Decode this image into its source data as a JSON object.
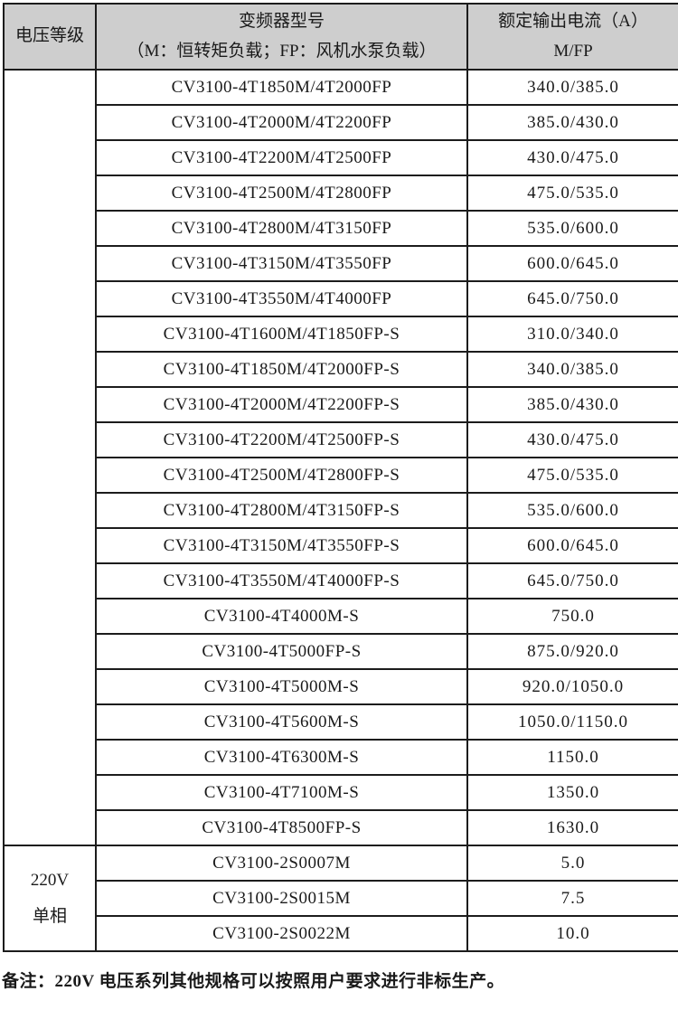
{
  "colors": {
    "header_background": "#cecece",
    "border": "#1c1c1c",
    "text": "#1a1a1a",
    "page_background": "#ffffff"
  },
  "table": {
    "header": {
      "voltage": "电压等级",
      "model_line1": "变频器型号",
      "model_line2": "（M：恒转矩负载；FP：风机水泵负载）",
      "current_line1": "额定输出电流（A）",
      "current_line2": "M/FP"
    },
    "sections": [
      {
        "voltage_lines": [],
        "rows": [
          {
            "model": "CV3100-4T1850M/4T2000FP",
            "current": "340.0/385.0"
          },
          {
            "model": "CV3100-4T2000M/4T2200FP",
            "current": "385.0/430.0"
          },
          {
            "model": "CV3100-4T2200M/4T2500FP",
            "current": "430.0/475.0"
          },
          {
            "model": "CV3100-4T2500M/4T2800FP",
            "current": "475.0/535.0"
          },
          {
            "model": "CV3100-4T2800M/4T3150FP",
            "current": "535.0/600.0"
          },
          {
            "model": "CV3100-4T3150M/4T3550FP",
            "current": "600.0/645.0"
          },
          {
            "model": "CV3100-4T3550M/4T4000FP",
            "current": "645.0/750.0"
          },
          {
            "model": "CV3100-4T1600M/4T1850FP-S",
            "current": "310.0/340.0"
          },
          {
            "model": "CV3100-4T1850M/4T2000FP-S",
            "current": "340.0/385.0"
          },
          {
            "model": "CV3100-4T2000M/4T2200FP-S",
            "current": "385.0/430.0"
          },
          {
            "model": "CV3100-4T2200M/4T2500FP-S",
            "current": "430.0/475.0"
          },
          {
            "model": "CV3100-4T2500M/4T2800FP-S",
            "current": "475.0/535.0"
          },
          {
            "model": "CV3100-4T2800M/4T3150FP-S",
            "current": "535.0/600.0"
          },
          {
            "model": "CV3100-4T3150M/4T3550FP-S",
            "current": "600.0/645.0"
          },
          {
            "model": "CV3100-4T3550M/4T4000FP-S",
            "current": "645.0/750.0"
          },
          {
            "model": "CV3100-4T4000M-S",
            "current": "750.0"
          },
          {
            "model": "CV3100-4T5000FP-S",
            "current": "875.0/920.0"
          },
          {
            "model": "CV3100-4T5000M-S",
            "current": "920.0/1050.0"
          },
          {
            "model": "CV3100-4T5600M-S",
            "current": "1050.0/1150.0"
          },
          {
            "model": "CV3100-4T6300M-S",
            "current": "1150.0"
          },
          {
            "model": "CV3100-4T7100M-S",
            "current": "1350.0"
          },
          {
            "model": "CV3100-4T8500FP-S",
            "current": "1630.0"
          }
        ]
      },
      {
        "voltage_lines": [
          "220V",
          "单相"
        ],
        "rows": [
          {
            "model": "CV3100-2S0007M",
            "current": "5.0"
          },
          {
            "model": "CV3100-2S0015M",
            "current": "7.5"
          },
          {
            "model": "CV3100-2S0022M",
            "current": "10.0"
          }
        ]
      }
    ]
  },
  "note": "备注：220V 电压系列其他规格可以按照用户要求进行非标生产。"
}
